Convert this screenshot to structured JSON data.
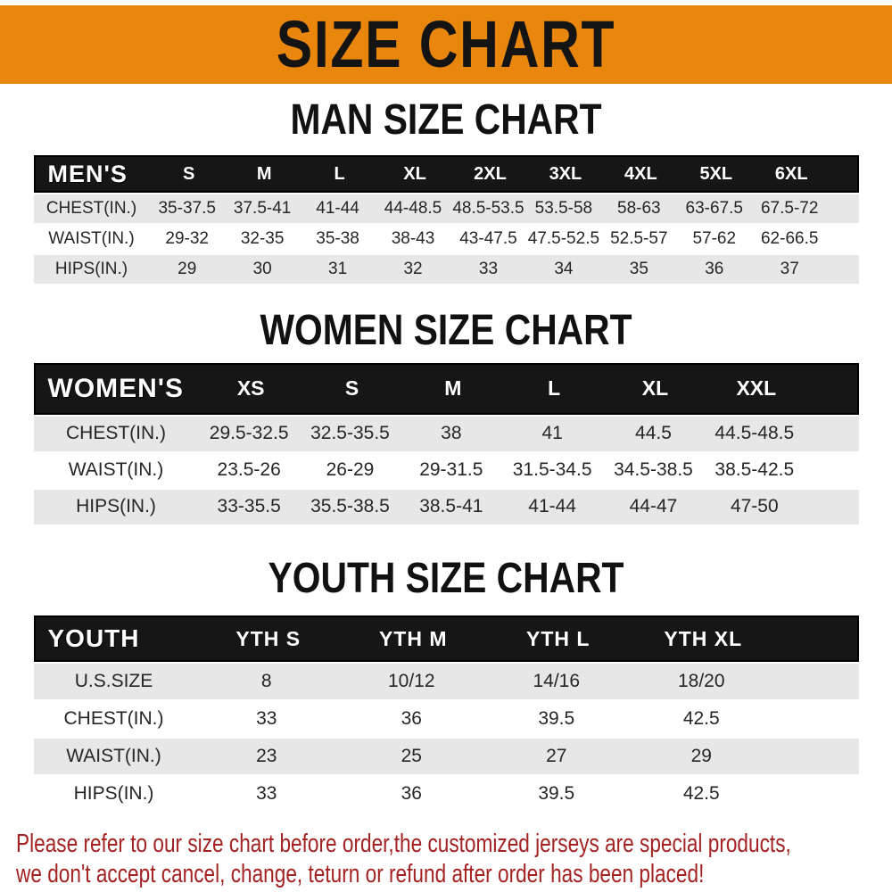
{
  "banner": {
    "title": "SIZE CHART"
  },
  "sections": [
    {
      "heading": "MAN SIZE CHART",
      "header": {
        "label": "MEN'S",
        "cols": [
          "S",
          "M",
          "L",
          "XL",
          "2XL",
          "3XL",
          "4XL",
          "5XL",
          "6XL"
        ]
      },
      "rows": [
        {
          "label": "CHEST(IN.)",
          "values": [
            "35-37.5",
            "37.5-41",
            "41-44",
            "44-48.5",
            "48.5-53.5",
            "53.5-58",
            "58-63",
            "63-67.5",
            "67.5-72"
          ]
        },
        {
          "label": "WAIST(IN.)",
          "values": [
            "29-32",
            "32-35",
            "35-38",
            "38-43",
            "43-47.5",
            "47.5-52.5",
            "52.5-57",
            "57-62",
            "62-66.5"
          ]
        },
        {
          "label": "HIPS(IN.)",
          "values": [
            "29",
            "30",
            "31",
            "32",
            "33",
            "34",
            "35",
            "36",
            "37"
          ]
        }
      ]
    },
    {
      "heading": "WOMEN SIZE CHART",
      "header": {
        "label": "WOMEN'S",
        "cols": [
          "XS",
          "S",
          "M",
          "L",
          "XL",
          "XXL"
        ]
      },
      "rows": [
        {
          "label": "CHEST(IN.)",
          "values": [
            "29.5-32.5",
            "32.5-35.5",
            "38",
            "41",
            "44.5",
            "44.5-48.5"
          ]
        },
        {
          "label": "WAIST(IN.)",
          "values": [
            "23.5-26",
            "26-29",
            "29-31.5",
            "31.5-34.5",
            "34.5-38.5",
            "38.5-42.5"
          ]
        },
        {
          "label": "HIPS(IN.)",
          "values": [
            "33-35.5",
            "35.5-38.5",
            "38.5-41",
            "41-44",
            "44-47",
            "47-50"
          ]
        }
      ]
    },
    {
      "heading": "YOUTH SIZE CHART",
      "header": {
        "label": "YOUTH",
        "cols": [
          "YTH S",
          "YTH M",
          "YTH L",
          "YTH XL"
        ]
      },
      "rows": [
        {
          "label": "U.S.SIZE",
          "values": [
            "8",
            "10/12",
            "14/16",
            "18/20"
          ]
        },
        {
          "label": "CHEST(IN.)",
          "values": [
            "33",
            "36",
            "39.5",
            "42.5"
          ]
        },
        {
          "label": "WAIST(IN.)",
          "values": [
            "23",
            "25",
            "27",
            "29"
          ]
        },
        {
          "label": "HIPS(IN.)",
          "values": [
            "33",
            "36",
            "39.5",
            "42.5"
          ]
        }
      ]
    }
  ],
  "footer": {
    "line1": "Please refer to our size chart before order,the customized jerseys are special products,",
    "line2": "we don't accept cancel, change, teturn or refund after order has been placed!"
  },
  "colors": {
    "banner_bg": "#E8860D",
    "header_bg": "#161616",
    "header_text": "#FFFFFF",
    "shade_bg": "#E7E7E7",
    "table_text": "#262626",
    "heading_color": "#111111",
    "notice_color": "#A32222"
  }
}
